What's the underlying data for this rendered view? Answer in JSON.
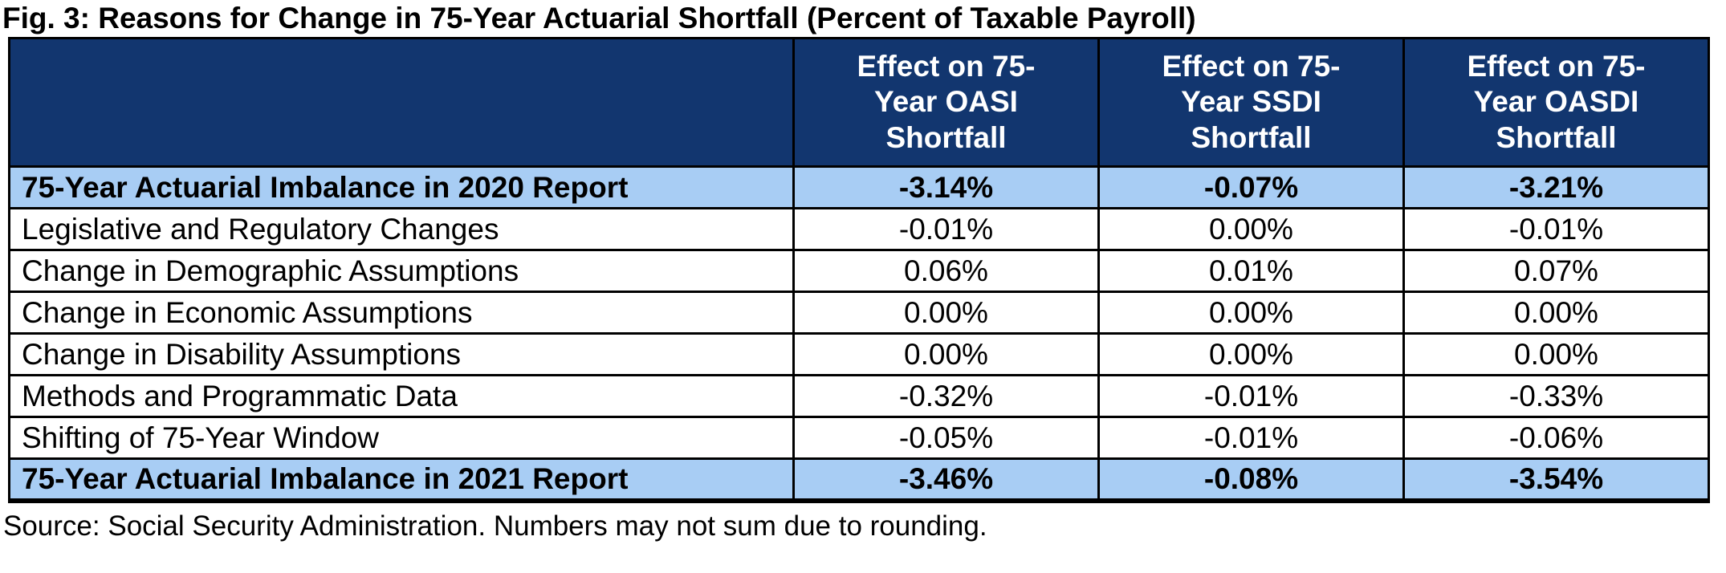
{
  "title": "Fig. 3: Reasons for Change in 75-Year Actuarial Shortfall (Percent of Taxable Payroll)",
  "source": "Source: Social Security Administration. Numbers may not sum due to rounding.",
  "colors": {
    "header_bg": "#12366F",
    "highlight_bg": "#A8CDF4",
    "header_text": "#FFFFFF",
    "border": "#000000"
  },
  "table": {
    "columns": [
      "",
      "Effect on 75-\nYear OASI\nShortfall",
      "Effect on 75-\nYear SSDI\nShortfall",
      "Effect on 75-\nYear OASDI\nShortfall"
    ],
    "rows": [
      {
        "label": "75-Year Actuarial Imbalance in 2020 Report",
        "oasi": "-3.14%",
        "ssdi": "-0.07%",
        "oasdi": "-3.21%",
        "highlight": true
      },
      {
        "label": "Legislative and Regulatory Changes",
        "oasi": "-0.01%",
        "ssdi": "0.00%",
        "oasdi": "-0.01%",
        "highlight": false
      },
      {
        "label": "Change in Demographic Assumptions",
        "oasi": "0.06%",
        "ssdi": "0.01%",
        "oasdi": "0.07%",
        "highlight": false
      },
      {
        "label": "Change in Economic Assumptions",
        "oasi": "0.00%",
        "ssdi": "0.00%",
        "oasdi": "0.00%",
        "highlight": false
      },
      {
        "label": "Change in Disability Assumptions",
        "oasi": "0.00%",
        "ssdi": "0.00%",
        "oasdi": "0.00%",
        "highlight": false
      },
      {
        "label": "Methods and Programmatic Data",
        "oasi": "-0.32%",
        "ssdi": "-0.01%",
        "oasdi": "-0.33%",
        "highlight": false
      },
      {
        "label": "Shifting of 75-Year Window",
        "oasi": "-0.05%",
        "ssdi": "-0.01%",
        "oasdi": "-0.06%",
        "highlight": false
      },
      {
        "label": "75-Year Actuarial Imbalance in 2021 Report",
        "oasi": "-3.46%",
        "ssdi": "-0.08%",
        "oasdi": "-3.54%",
        "highlight": true
      }
    ]
  },
  "chart_data": {
    "type": "table",
    "title": "Fig. 3: Reasons for Change in 75-Year Actuarial Shortfall (Percent of Taxable Payroll)",
    "columns": [
      "Effect on 75-Year OASI Shortfall",
      "Effect on 75-Year SSDI Shortfall",
      "Effect on 75-Year OASDI Shortfall"
    ],
    "units": "percent of taxable payroll",
    "rows": [
      {
        "label": "75-Year Actuarial Imbalance in 2020 Report",
        "values": [
          -3.14,
          -0.07,
          -3.21
        ]
      },
      {
        "label": "Legislative and Regulatory Changes",
        "values": [
          -0.01,
          0.0,
          -0.01
        ]
      },
      {
        "label": "Change in Demographic Assumptions",
        "values": [
          0.06,
          0.01,
          0.07
        ]
      },
      {
        "label": "Change in Economic Assumptions",
        "values": [
          0.0,
          0.0,
          0.0
        ]
      },
      {
        "label": "Change in Disability Assumptions",
        "values": [
          0.0,
          0.0,
          0.0
        ]
      },
      {
        "label": "Methods and Programmatic Data",
        "values": [
          -0.32,
          -0.01,
          -0.33
        ]
      },
      {
        "label": "Shifting of 75-Year Window",
        "values": [
          -0.05,
          -0.01,
          -0.06
        ]
      },
      {
        "label": "75-Year Actuarial Imbalance in 2021 Report",
        "values": [
          -3.46,
          -0.08,
          -3.54
        ]
      }
    ],
    "source": "Source: Social Security Administration. Numbers may not sum due to rounding."
  }
}
